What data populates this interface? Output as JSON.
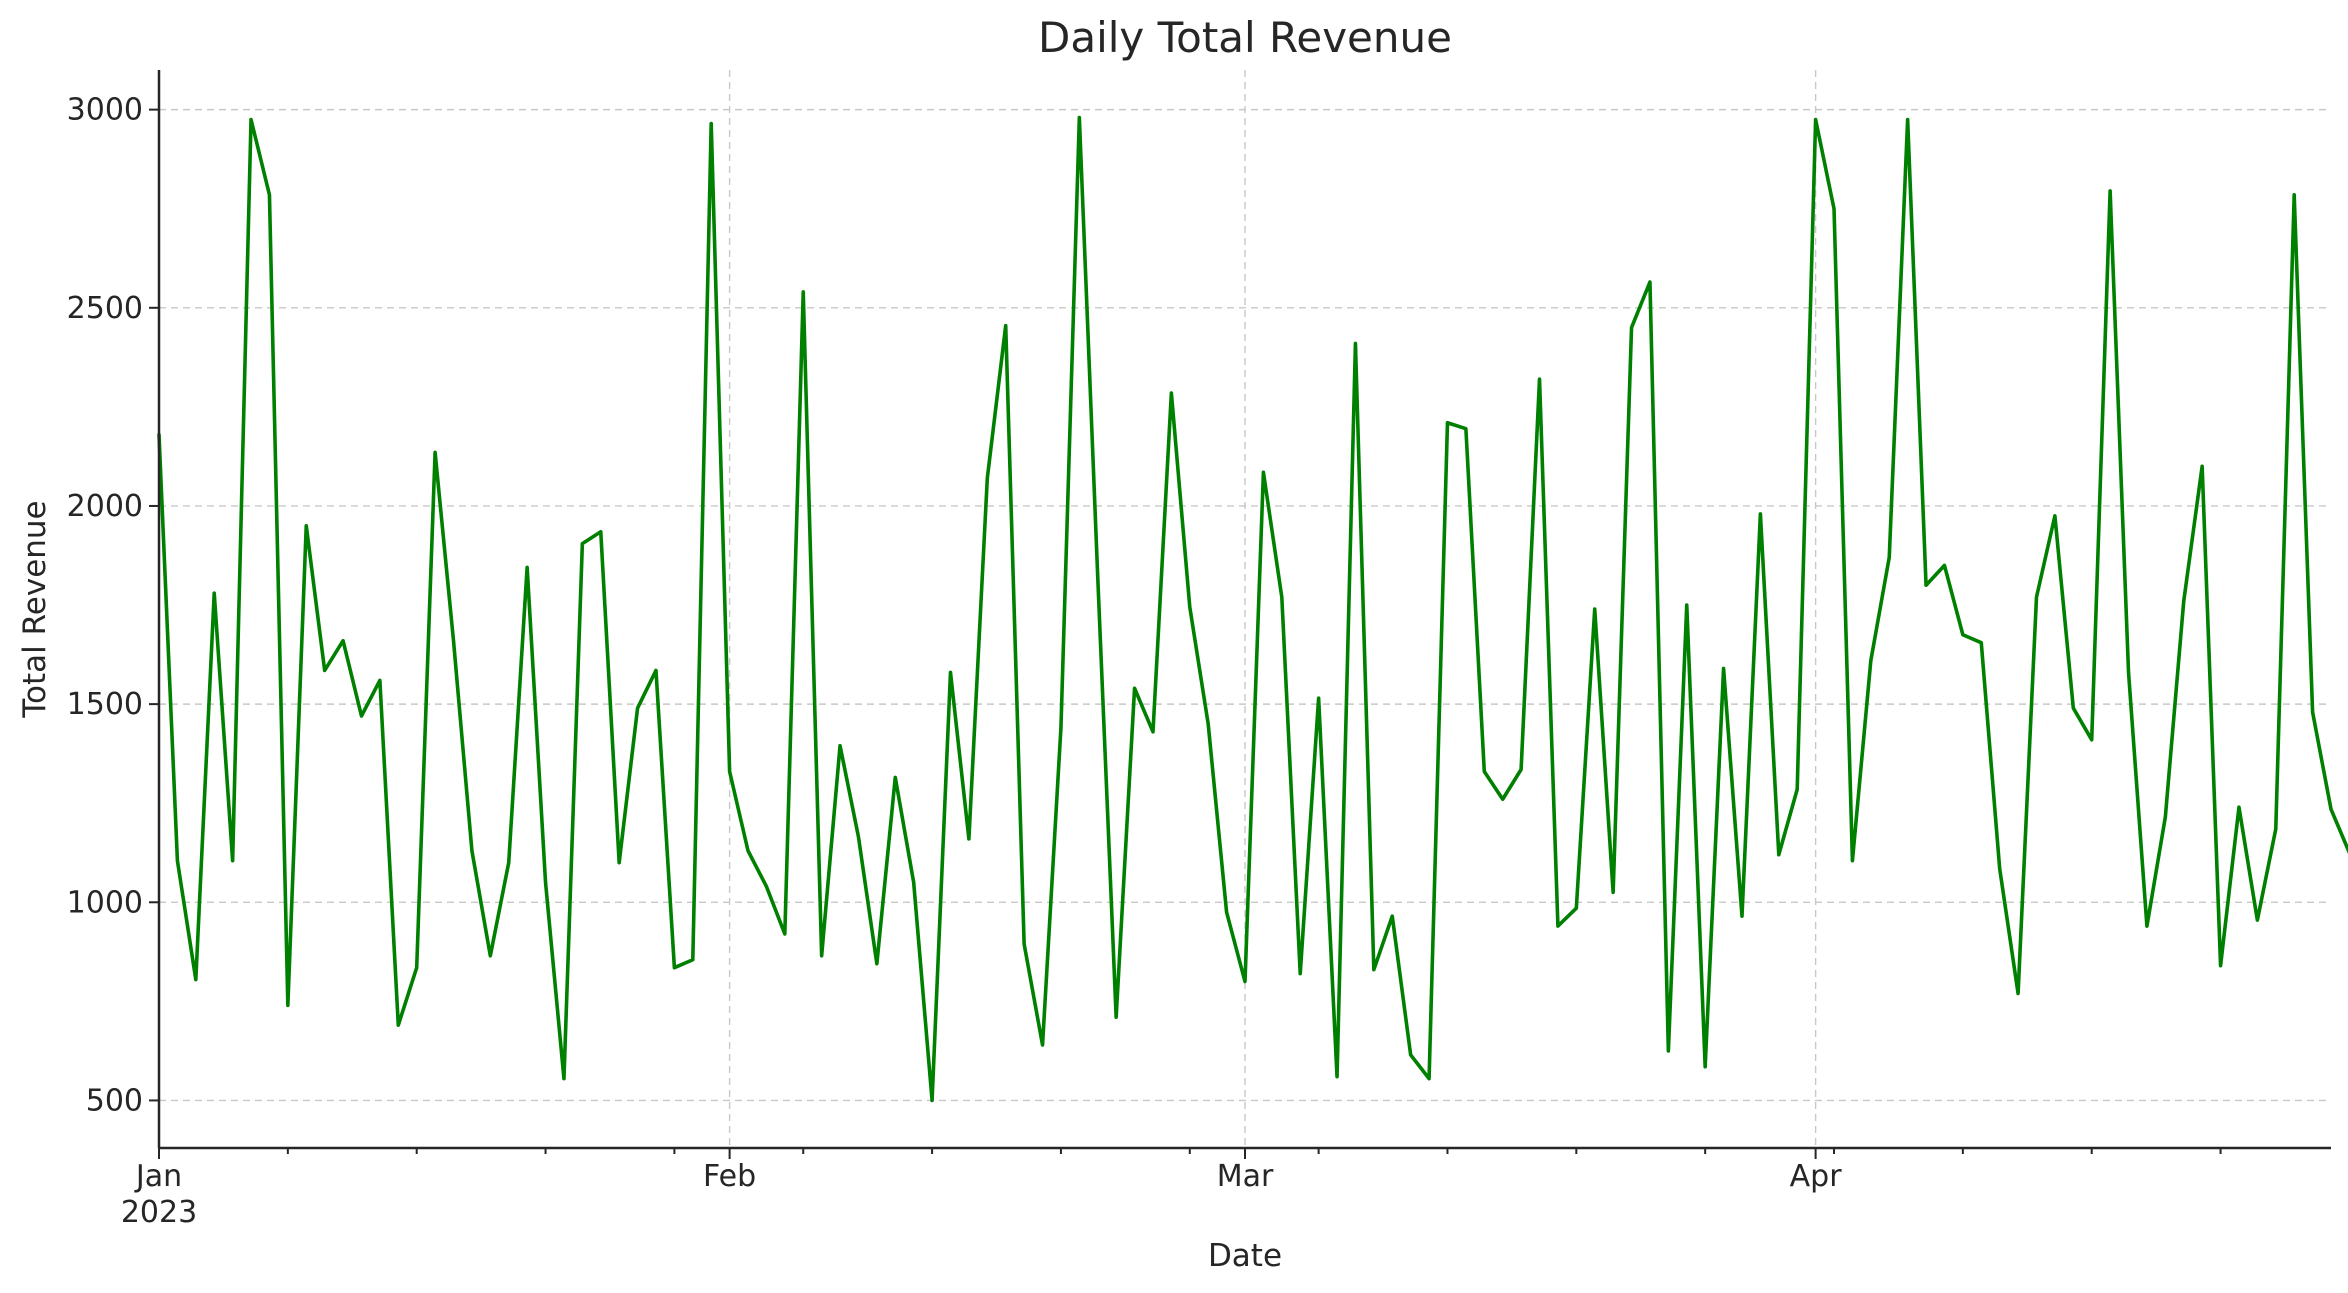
{
  "chart_data": {
    "type": "line",
    "title": "Daily Total Revenue",
    "xlabel": "Date",
    "ylabel": "Total Revenue",
    "x_start": "2023-01-01",
    "x_end": "2023-04-29",
    "ylim": [
      380,
      3100
    ],
    "yticks": [
      500,
      1000,
      1500,
      2000,
      2500,
      3000
    ],
    "xticks_major": [
      {
        "date": "2023-01-01",
        "label": "Jan",
        "sublabel": "2023"
      },
      {
        "date": "2023-02-01",
        "label": "Feb",
        "sublabel": ""
      },
      {
        "date": "2023-03-01",
        "label": "Mar",
        "sublabel": ""
      },
      {
        "date": "2023-04-01",
        "label": "Apr",
        "sublabel": ""
      }
    ],
    "xticks_minor": [
      "2023-01-08",
      "2023-01-15",
      "2023-01-22",
      "2023-01-29",
      "2023-02-05",
      "2023-02-12",
      "2023-02-19",
      "2023-02-26",
      "2023-03-05",
      "2023-03-12",
      "2023-03-19",
      "2023-03-26",
      "2023-04-02",
      "2023-04-09",
      "2023-04-16",
      "2023-04-23"
    ],
    "grid": true,
    "series": [
      {
        "color": "#008000",
        "values": [
          2180,
          1105,
          805,
          1780,
          1105,
          2975,
          2785,
          740,
          1950,
          1585,
          1660,
          1470,
          1560,
          690,
          835,
          2135,
          1660,
          1130,
          865,
          1100,
          1845,
          1050,
          555,
          1905,
          1935,
          1100,
          1490,
          1585,
          835,
          855,
          2965,
          1330,
          1130,
          1040,
          920,
          2540,
          865,
          1395,
          1165,
          845,
          1315,
          1050,
          500,
          1580,
          1160,
          2070,
          2455,
          895,
          640,
          1440,
          2980,
          1820,
          710,
          1540,
          1430,
          2285,
          1745,
          1450,
          975,
          800,
          2085,
          1770,
          820,
          1515,
          560,
          2410,
          830,
          965,
          615,
          555,
          2210,
          2195,
          1330,
          1260,
          1335,
          2320,
          940,
          985,
          1740,
          1025,
          2450,
          2565,
          625,
          1750,
          585,
          1590,
          965,
          1980,
          1120,
          1285,
          2975,
          2750,
          1105,
          1610,
          1870,
          2975,
          1800,
          1850,
          1675,
          1655,
          1085,
          770,
          1770,
          1975,
          1490,
          1410,
          2795,
          1580,
          940,
          1215,
          1760,
          2100,
          840,
          1240,
          955,
          1185,
          2785,
          1480,
          1235,
          1125
        ]
      }
    ]
  }
}
